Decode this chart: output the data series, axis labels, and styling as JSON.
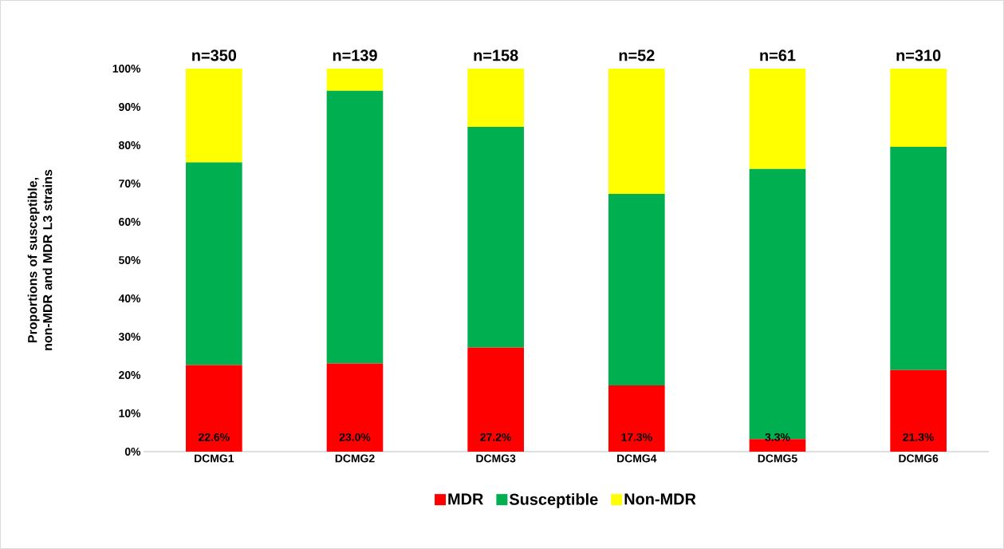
{
  "chart_data": {
    "type": "bar",
    "stacked": true,
    "ylabel": "Proportions of susceptible, non-MDR and MDR L3 strains",
    "categories": [
      "DCMG1",
      "DCMG2",
      "DCMG3",
      "DCMG4",
      "DCMG5",
      "DCMG6"
    ],
    "series": [
      {
        "name": "MDR",
        "color": "#ff0000",
        "values": [
          22.6,
          23.0,
          27.2,
          17.3,
          3.3,
          21.3
        ],
        "value_labels": [
          "22.6%",
          "23.0%",
          "27.2%",
          "17.3%",
          "3.3%",
          "21.3%"
        ]
      },
      {
        "name": "Susceptible",
        "color": "#00b050",
        "values": [
          52.9,
          71.2,
          57.6,
          50.0,
          70.5,
          58.3
        ]
      },
      {
        "name": "Non-MDR",
        "color": "#ffff00",
        "values": [
          24.5,
          5.8,
          15.2,
          32.7,
          26.2,
          20.4
        ]
      }
    ],
    "annotations": [
      "n=350",
      "n=139",
      "n=158",
      "n=52",
      "n=61",
      "n=310"
    ],
    "ylim": [
      0,
      100
    ],
    "yticks": [
      {
        "value": 0,
        "label": "0%"
      },
      {
        "value": 10,
        "label": "10%"
      },
      {
        "value": 20,
        "label": "20%"
      },
      {
        "value": 30,
        "label": "30%"
      },
      {
        "value": 40,
        "label": "40%"
      },
      {
        "value": 50,
        "label": "50%"
      },
      {
        "value": 60,
        "label": "60%"
      },
      {
        "value": 70,
        "label": "70%"
      },
      {
        "value": 80,
        "label": "80%"
      },
      {
        "value": 90,
        "label": "90%"
      },
      {
        "value": 100,
        "label": "100%"
      }
    ],
    "legend": "bottom",
    "grid": false
  }
}
